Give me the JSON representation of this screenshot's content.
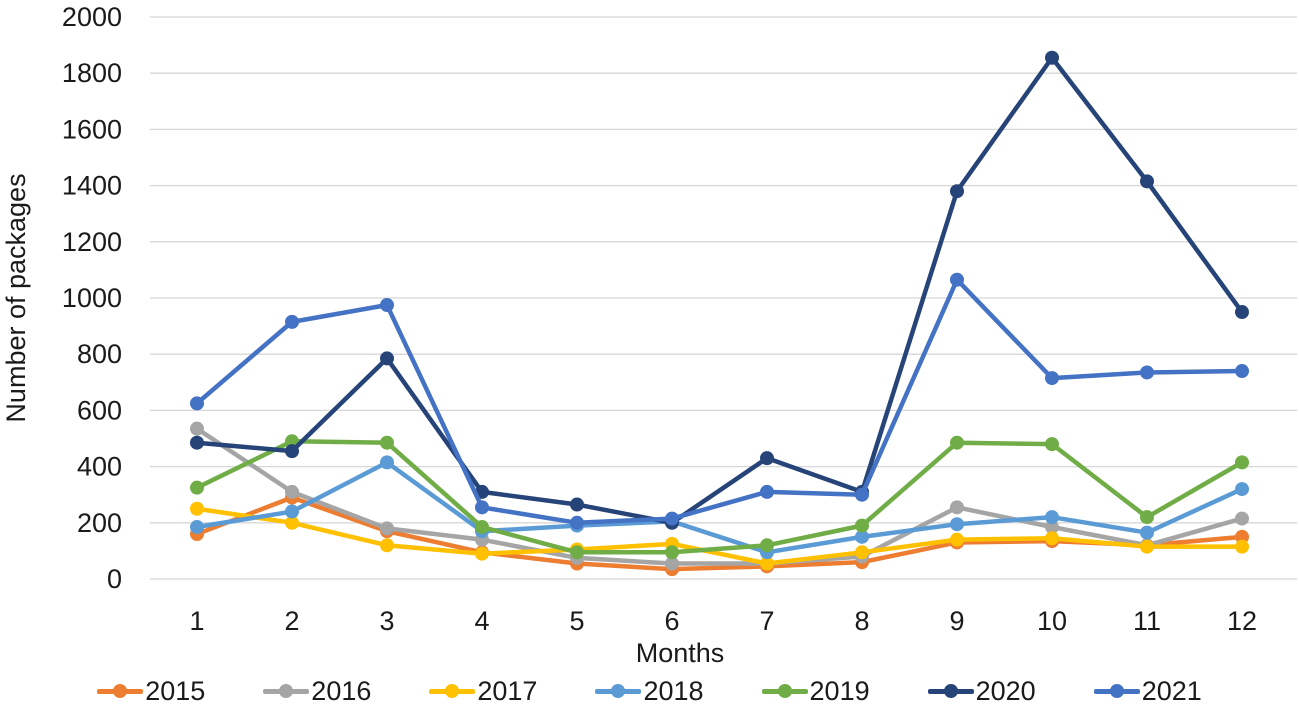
{
  "chart_data": {
    "type": "line",
    "title": "",
    "xlabel": "Months",
    "ylabel": "Number of packages",
    "x": [
      1,
      2,
      3,
      4,
      5,
      6,
      7,
      8,
      9,
      10,
      11,
      12
    ],
    "ylim": [
      0,
      2000
    ],
    "ytick_step": 200,
    "grid": "horizontal",
    "legend_position": "bottom",
    "text_color": "#1a1a1a",
    "grid_color": "#d7d7d7",
    "series": [
      {
        "name": "2015",
        "color": "#ED7D31",
        "values": [
          160,
          290,
          170,
          95,
          55,
          35,
          45,
          60,
          130,
          135,
          120,
          150
        ]
      },
      {
        "name": "2016",
        "color": "#A5A5A5",
        "values": [
          535,
          310,
          180,
          140,
          75,
          55,
          55,
          80,
          255,
          185,
          120,
          215
        ]
      },
      {
        "name": "2017",
        "color": "#FFC000",
        "values": [
          250,
          200,
          120,
          90,
          105,
          125,
          55,
          95,
          140,
          145,
          115,
          115
        ]
      },
      {
        "name": "2018",
        "color": "#5B9BD5",
        "values": [
          185,
          240,
          415,
          170,
          190,
          205,
          95,
          150,
          195,
          220,
          165,
          320
        ]
      },
      {
        "name": "2019",
        "color": "#70AD47",
        "values": [
          325,
          490,
          485,
          185,
          95,
          95,
          120,
          190,
          485,
          480,
          220,
          415
        ]
      },
      {
        "name": "2020",
        "color": "#264478",
        "values": [
          485,
          455,
          785,
          310,
          265,
          200,
          430,
          310,
          1380,
          1855,
          1415,
          950
        ]
      },
      {
        "name": "2021",
        "color": "#4472C4",
        "values": [
          625,
          915,
          975,
          255,
          200,
          215,
          310,
          300,
          1065,
          715,
          735,
          740
        ]
      }
    ]
  }
}
